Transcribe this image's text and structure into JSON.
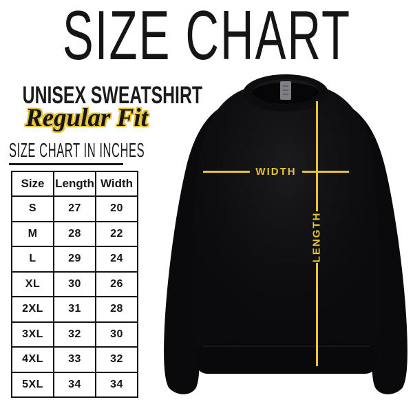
{
  "header": {
    "title": "SIZE CHART"
  },
  "product": {
    "name": "UNISEX SWEATSHIRT",
    "fit": "Regular Fit"
  },
  "table_section": {
    "heading": "SIZE CHART IN INCHES"
  },
  "size_table": {
    "columns": [
      "Size",
      "Length",
      "Width"
    ],
    "rows": [
      [
        "S",
        "27",
        "20"
      ],
      [
        "M",
        "28",
        "22"
      ],
      [
        "L",
        "29",
        "24"
      ],
      [
        "XL",
        "30",
        "26"
      ],
      [
        "2XL",
        "31",
        "28"
      ],
      [
        "3XL",
        "32",
        "30"
      ],
      [
        "4XL",
        "33",
        "32"
      ],
      [
        "5XL",
        "34",
        "34"
      ]
    ]
  },
  "diagram": {
    "width_label": "WIDTH",
    "length_label": "LENGTH",
    "garment": "black crewneck sweatshirt"
  },
  "colors": {
    "accent_yellow": "#e6c338",
    "text_black": "#141414",
    "sweatshirt_black": "#0b0b0d"
  }
}
